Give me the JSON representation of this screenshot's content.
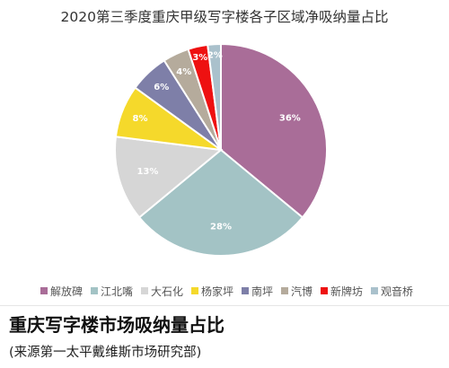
{
  "chart_data": {
    "type": "pie",
    "title": "2020第三季度重庆甲级写字楼各子区域净吸纳量占比",
    "categories": [
      "解放碑",
      "江北嘴",
      "大石化",
      "杨家坪",
      "南坪",
      "汽博",
      "新牌坊",
      "观音桥"
    ],
    "values": [
      36,
      28,
      13,
      8,
      6,
      4,
      3,
      2
    ],
    "labels": [
      "36%",
      "28%",
      "13%",
      "8%",
      "6%",
      "4%",
      "3%",
      "2%"
    ],
    "colors": [
      "#a96d98",
      "#a3c3c5",
      "#d6d6d6",
      "#f5d92b",
      "#7e7fa8",
      "#b5ab9c",
      "#ee1111",
      "#aac1cc"
    ],
    "label_colors": [
      "#ffffff",
      "#ffffff",
      "#ffffff",
      "#ffffff",
      "#ffffff",
      "#ffffff",
      "#ffffff",
      "#ffffff"
    ],
    "legend_position": "bottom",
    "start_angle": "12 o'clock",
    "direction": "clockwise"
  },
  "footer": {
    "title": "重庆写字楼市场吸纳量占比",
    "source": "(来源第一太平戴维斯市场研究部)"
  }
}
